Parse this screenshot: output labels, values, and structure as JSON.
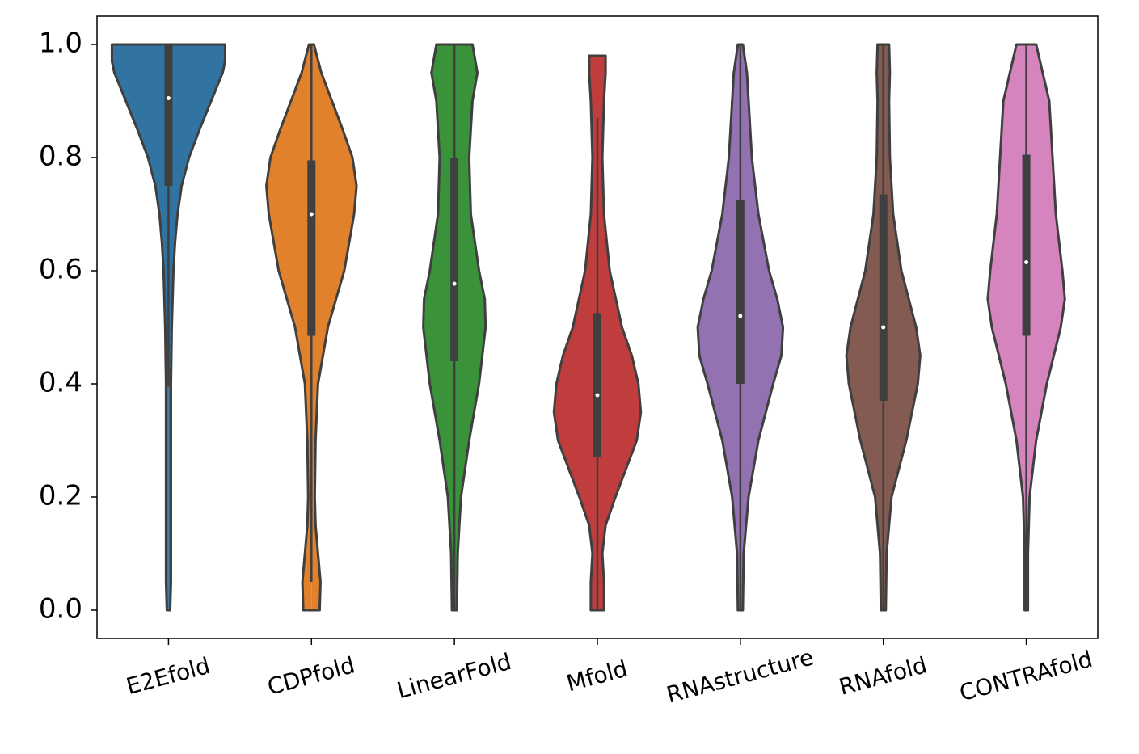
{
  "chart_data": {
    "type": "violin",
    "categories": [
      "E2Efold",
      "CDPfold",
      "LinearFold",
      "Mfold",
      "RNAstructure",
      "RNAfold",
      "CONTRAfold"
    ],
    "ylim": [
      -0.05,
      1.05
    ],
    "yticks": [
      {
        "value": 0,
        "label": "0.0"
      },
      {
        "value": 0.2,
        "label": "0.2"
      },
      {
        "value": 0.4,
        "label": "0.4"
      },
      {
        "value": 0.6,
        "label": "0.6"
      },
      {
        "value": 0.8,
        "label": "0.8"
      },
      {
        "value": 1,
        "label": "1.0"
      }
    ],
    "edge_color": "#3f3f3f",
    "violins": [
      {
        "color": "#3274a1",
        "median": 0.905,
        "q1": 0.75,
        "q3": 1.0,
        "whisker_low": 0.395,
        "whisker_high": 1.0,
        "density_y": [
          0,
          0.05,
          0.1,
          0.2,
          0.3,
          0.4,
          0.5,
          0.6,
          0.65,
          0.7,
          0.75,
          0.8,
          0.85,
          0.9,
          0.95,
          0.97,
          1.0
        ],
        "density": [
          2,
          3,
          3,
          3,
          3,
          3,
          4,
          6,
          8,
          11,
          16,
          25,
          38,
          52,
          66,
          69,
          69
        ]
      },
      {
        "color": "#e1812c",
        "median": 0.7,
        "q1": 0.485,
        "q3": 0.795,
        "whisker_low": 0.05,
        "whisker_high": 1.0,
        "density_y": [
          0,
          0.05,
          0.1,
          0.15,
          0.2,
          0.3,
          0.4,
          0.5,
          0.6,
          0.7,
          0.75,
          0.8,
          0.85,
          0.9,
          0.95,
          1.0
        ],
        "density": [
          10,
          11,
          8,
          5,
          4,
          5,
          8,
          20,
          40,
          52,
          55,
          50,
          38,
          25,
          12,
          3
        ]
      },
      {
        "color": "#3a923a",
        "median": 0.577,
        "q1": 0.44,
        "q3": 0.8,
        "whisker_low": 0,
        "whisker_high": 1.0,
        "density_y": [
          0,
          0.1,
          0.2,
          0.3,
          0.4,
          0.5,
          0.55,
          0.6,
          0.7,
          0.8,
          0.9,
          0.95,
          1.0
        ],
        "density": [
          3,
          4,
          8,
          18,
          30,
          38,
          37,
          30,
          20,
          18,
          22,
          28,
          22
        ]
      },
      {
        "color": "#c03d3e",
        "median": 0.38,
        "q1": 0.27,
        "q3": 0.525,
        "whisker_low": 0,
        "whisker_high": 0.87,
        "density_y": [
          0,
          0.05,
          0.1,
          0.15,
          0.2,
          0.25,
          0.3,
          0.35,
          0.4,
          0.45,
          0.5,
          0.6,
          0.7,
          0.8,
          0.9,
          0.95,
          0.98
        ],
        "density": [
          8,
          8,
          6,
          10,
          22,
          35,
          48,
          53,
          50,
          42,
          30,
          15,
          8,
          6,
          8,
          10,
          10
        ]
      },
      {
        "color": "#9372b2",
        "median": 0.52,
        "q1": 0.4,
        "q3": 0.725,
        "whisker_low": 0,
        "whisker_high": 1.0,
        "density_y": [
          0,
          0.1,
          0.2,
          0.3,
          0.4,
          0.45,
          0.5,
          0.55,
          0.6,
          0.7,
          0.8,
          0.9,
          0.95,
          1.0
        ],
        "density": [
          3,
          4,
          10,
          22,
          40,
          50,
          52,
          45,
          35,
          22,
          14,
          10,
          8,
          3
        ]
      },
      {
        "color": "#845b53",
        "median": 0.5,
        "q1": 0.37,
        "q3": 0.735,
        "whisker_low": 0,
        "whisker_high": 1.0,
        "density_y": [
          0,
          0.1,
          0.2,
          0.3,
          0.4,
          0.45,
          0.5,
          0.6,
          0.7,
          0.8,
          0.9,
          0.95,
          1.0
        ],
        "density": [
          3,
          4,
          10,
          28,
          42,
          45,
          40,
          22,
          12,
          8,
          7,
          8,
          7
        ]
      },
      {
        "color": "#d684bd",
        "median": 0.615,
        "q1": 0.485,
        "q3": 0.805,
        "whisker_low": 0,
        "whisker_high": 1.0,
        "density_y": [
          0,
          0.1,
          0.2,
          0.3,
          0.4,
          0.5,
          0.55,
          0.6,
          0.7,
          0.8,
          0.9,
          0.95,
          1.0
        ],
        "density": [
          2,
          2,
          4,
          12,
          25,
          42,
          47,
          44,
          36,
          32,
          28,
          20,
          12
        ]
      }
    ]
  }
}
